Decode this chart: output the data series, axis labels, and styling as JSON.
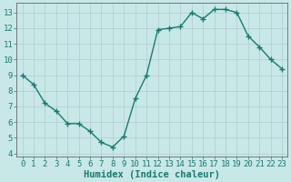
{
  "x": [
    0,
    1,
    2,
    3,
    4,
    5,
    6,
    7,
    8,
    9,
    10,
    11,
    12,
    13,
    14,
    15,
    16,
    17,
    18,
    19,
    20,
    21,
    22,
    23
  ],
  "y": [
    9.0,
    8.4,
    7.2,
    6.7,
    5.9,
    5.9,
    5.4,
    4.7,
    4.4,
    5.1,
    7.5,
    9.0,
    11.9,
    12.0,
    12.1,
    13.0,
    12.6,
    13.2,
    13.2,
    13.0,
    11.5,
    10.8,
    10.0,
    9.4
  ],
  "line_color": "#1a7a6e",
  "marker": "+",
  "marker_size": 4,
  "background_color": "#c8e8e8",
  "grid_color": "#b0cccc",
  "xlabel": "Humidex (Indice chaleur)",
  "ylabel": "",
  "xlim": [
    -0.5,
    23.5
  ],
  "ylim": [
    3.8,
    13.6
  ],
  "yticks": [
    4,
    5,
    6,
    7,
    8,
    9,
    10,
    11,
    12,
    13
  ],
  "xticks": [
    0,
    1,
    2,
    3,
    4,
    5,
    6,
    7,
    8,
    9,
    10,
    11,
    12,
    13,
    14,
    15,
    16,
    17,
    18,
    19,
    20,
    21,
    22,
    23
  ],
  "tick_label_fontsize": 6.5,
  "xlabel_fontsize": 7.5,
  "line_width": 1.0,
  "spine_color": "#666666",
  "tick_color": "#1a7a6e",
  "label_color": "#1a7a6e"
}
